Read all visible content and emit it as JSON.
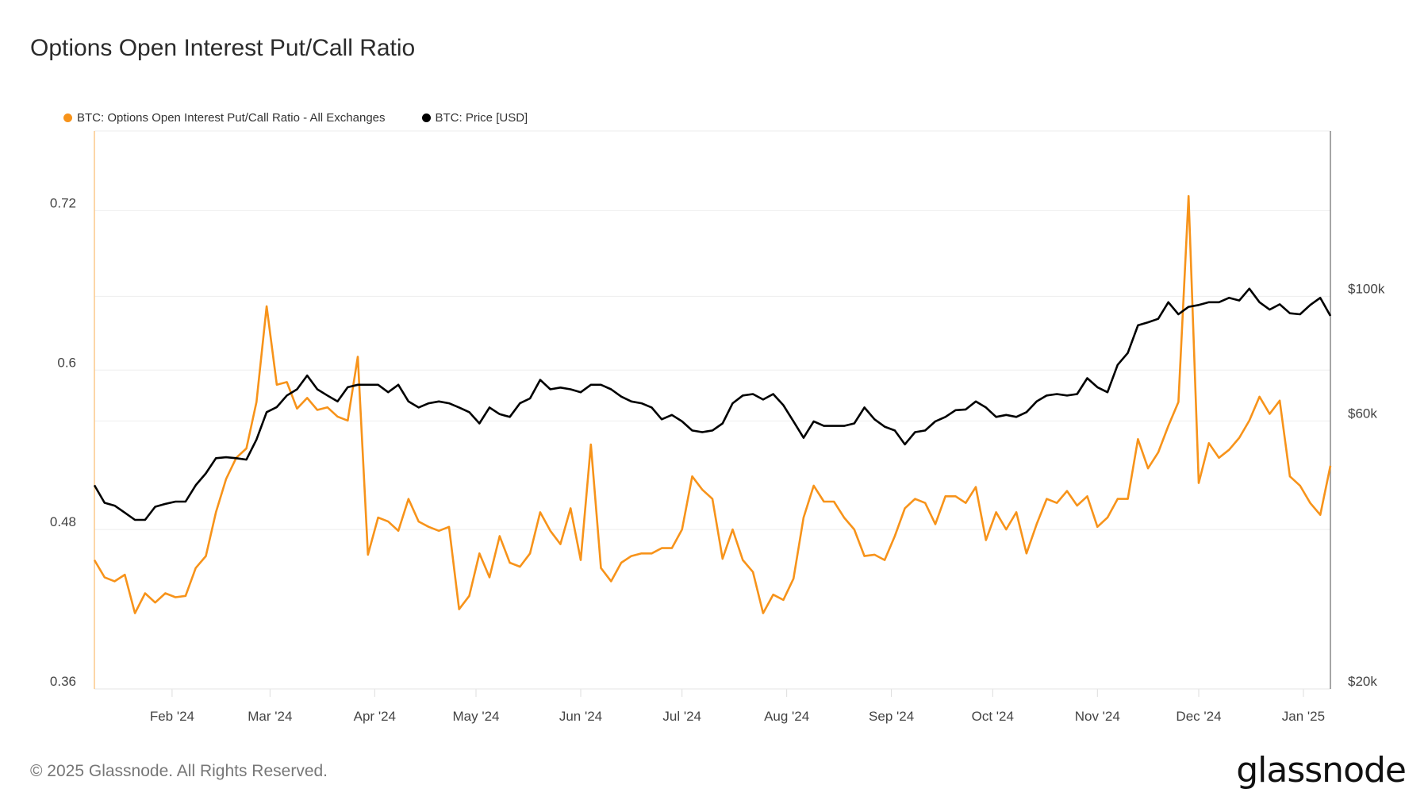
{
  "title": "Options Open Interest Put/Call Ratio",
  "legend": [
    {
      "label": "BTC: Options Open Interest Put/Call Ratio - All Exchanges",
      "color": "#f7931a"
    },
    {
      "label": "BTC: Price [USD]",
      "color": "#000000"
    }
  ],
  "footer": {
    "copyright": "© 2025 Glassnode. All Rights Reserved.",
    "logo": "glassnode"
  },
  "chart_data": {
    "type": "line",
    "title": "Options Open Interest Put/Call Ratio",
    "grid": true,
    "legend_position": "top-left",
    "x_range": [
      "2024-01-09",
      "2025-01-09"
    ],
    "x_ticks": [
      {
        "date": "2024-02-01",
        "label": "Feb '24"
      },
      {
        "date": "2024-03-01",
        "label": "Mar '24"
      },
      {
        "date": "2024-04-01",
        "label": "Apr '24"
      },
      {
        "date": "2024-05-01",
        "label": "May '24"
      },
      {
        "date": "2024-06-01",
        "label": "Jun '24"
      },
      {
        "date": "2024-07-01",
        "label": "Jul '24"
      },
      {
        "date": "2024-08-01",
        "label": "Aug '24"
      },
      {
        "date": "2024-09-01",
        "label": "Sep '24"
      },
      {
        "date": "2024-10-01",
        "label": "Oct '24"
      },
      {
        "date": "2024-11-01",
        "label": "Nov '24"
      },
      {
        "date": "2024-12-01",
        "label": "Dec '24"
      },
      {
        "date": "2025-01-01",
        "label": "Jan '25"
      }
    ],
    "y_left": {
      "scale": "linear",
      "range": [
        0.36,
        0.78
      ],
      "ticks": [
        {
          "value": 0.36,
          "label": "0.36"
        },
        {
          "value": 0.48,
          "label": "0.48"
        },
        {
          "value": 0.6,
          "label": "0.6"
        },
        {
          "value": 0.72,
          "label": "0.72"
        }
      ]
    },
    "y_right": {
      "scale": "log",
      "range": [
        20000,
        197000
      ],
      "ticks": [
        {
          "value": 20000,
          "label": "$20k"
        },
        {
          "value": 60000,
          "label": "$60k"
        },
        {
          "value": 100000,
          "label": "$100k"
        }
      ]
    },
    "x": [
      "2024-01-09",
      "2024-01-12",
      "2024-01-15",
      "2024-01-18",
      "2024-01-21",
      "2024-01-24",
      "2024-01-27",
      "2024-01-30",
      "2024-02-02",
      "2024-02-05",
      "2024-02-08",
      "2024-02-11",
      "2024-02-14",
      "2024-02-17",
      "2024-02-20",
      "2024-02-23",
      "2024-02-26",
      "2024-02-29",
      "2024-03-03",
      "2024-03-06",
      "2024-03-09",
      "2024-03-12",
      "2024-03-15",
      "2024-03-18",
      "2024-03-21",
      "2024-03-24",
      "2024-03-27",
      "2024-03-30",
      "2024-04-02",
      "2024-04-05",
      "2024-04-08",
      "2024-04-11",
      "2024-04-14",
      "2024-04-17",
      "2024-04-20",
      "2024-04-23",
      "2024-04-26",
      "2024-04-29",
      "2024-05-02",
      "2024-05-05",
      "2024-05-08",
      "2024-05-11",
      "2024-05-14",
      "2024-05-17",
      "2024-05-20",
      "2024-05-23",
      "2024-05-26",
      "2024-05-29",
      "2024-06-01",
      "2024-06-04",
      "2024-06-07",
      "2024-06-10",
      "2024-06-13",
      "2024-06-16",
      "2024-06-19",
      "2024-06-22",
      "2024-06-25",
      "2024-06-28",
      "2024-07-01",
      "2024-07-04",
      "2024-07-07",
      "2024-07-10",
      "2024-07-13",
      "2024-07-16",
      "2024-07-19",
      "2024-07-22",
      "2024-07-25",
      "2024-07-28",
      "2024-07-31",
      "2024-08-03",
      "2024-08-06",
      "2024-08-09",
      "2024-08-12",
      "2024-08-15",
      "2024-08-18",
      "2024-08-21",
      "2024-08-24",
      "2024-08-27",
      "2024-08-30",
      "2024-09-02",
      "2024-09-05",
      "2024-09-08",
      "2024-09-11",
      "2024-09-14",
      "2024-09-17",
      "2024-09-20",
      "2024-09-23",
      "2024-09-26",
      "2024-09-29",
      "2024-10-02",
      "2024-10-05",
      "2024-10-08",
      "2024-10-11",
      "2024-10-14",
      "2024-10-17",
      "2024-10-20",
      "2024-10-23",
      "2024-10-26",
      "2024-10-29",
      "2024-11-01",
      "2024-11-04",
      "2024-11-07",
      "2024-11-10",
      "2024-11-13",
      "2024-11-16",
      "2024-11-19",
      "2024-11-22",
      "2024-11-25",
      "2024-11-28",
      "2024-12-01",
      "2024-12-04",
      "2024-12-07",
      "2024-12-10",
      "2024-12-13",
      "2024-12-16",
      "2024-12-19",
      "2024-12-22",
      "2024-12-25",
      "2024-12-28",
      "2024-12-31",
      "2025-01-03",
      "2025-01-06",
      "2025-01-09"
    ],
    "series": [
      {
        "name": "BTC: Options Open Interest Put/Call Ratio - All Exchanges",
        "axis": "left",
        "color": "#f7931a",
        "values": [
          0.457,
          0.444,
          0.441,
          0.446,
          0.417,
          0.432,
          0.425,
          0.432,
          0.429,
          0.43,
          0.451,
          0.46,
          0.493,
          0.518,
          0.534,
          0.541,
          0.576,
          0.648,
          0.589,
          0.591,
          0.571,
          0.579,
          0.57,
          0.572,
          0.565,
          0.562,
          0.61,
          0.461,
          0.489,
          0.486,
          0.479,
          0.503,
          0.486,
          0.482,
          0.479,
          0.482,
          0.42,
          0.43,
          0.462,
          0.444,
          0.475,
          0.455,
          0.452,
          0.462,
          0.493,
          0.479,
          0.469,
          0.496,
          0.457,
          0.544,
          0.451,
          0.441,
          0.455,
          0.46,
          0.462,
          0.462,
          0.466,
          0.466,
          0.48,
          0.52,
          0.51,
          0.503,
          0.458,
          0.48,
          0.457,
          0.448,
          0.417,
          0.431,
          0.427,
          0.443,
          0.489,
          0.513,
          0.501,
          0.501,
          0.489,
          0.48,
          0.46,
          0.461,
          0.457,
          0.475,
          0.496,
          0.503,
          0.5,
          0.484,
          0.505,
          0.505,
          0.5,
          0.512,
          0.472,
          0.493,
          0.48,
          0.493,
          0.462,
          0.484,
          0.503,
          0.5,
          0.509,
          0.498,
          0.505,
          0.482,
          0.489,
          0.503,
          0.503,
          0.548,
          0.526,
          0.538,
          0.558,
          0.576,
          0.731,
          0.515,
          0.545,
          0.534,
          0.54,
          0.549,
          0.562,
          0.58,
          0.567,
          0.577,
          0.52,
          0.513,
          0.5,
          0.491,
          0.528
        ]
      },
      {
        "name": "BTC: Price [USD]",
        "axis": "right",
        "color": "#000000",
        "values": [
          46100,
          42900,
          42400,
          41200,
          40000,
          40000,
          42200,
          42700,
          43100,
          43100,
          46100,
          48400,
          51500,
          51700,
          51500,
          51200,
          55600,
          62200,
          63500,
          66600,
          68300,
          72300,
          68300,
          66600,
          65000,
          68900,
          69600,
          69600,
          69600,
          67500,
          69600,
          65000,
          63400,
          64500,
          65000,
          64500,
          63400,
          62200,
          59400,
          63400,
          61700,
          61000,
          64500,
          65800,
          71000,
          68300,
          68800,
          68300,
          67500,
          69600,
          69600,
          68300,
          66300,
          65000,
          64500,
          63400,
          60400,
          61500,
          59900,
          57700,
          57300,
          57700,
          59400,
          64500,
          66600,
          67000,
          65500,
          67000,
          64000,
          59900,
          56000,
          59900,
          58800,
          58800,
          58800,
          59400,
          63400,
          60400,
          58600,
          57700,
          54500,
          57300,
          57700,
          59900,
          61000,
          62700,
          62900,
          65000,
          63400,
          61000,
          61500,
          61000,
          62200,
          65000,
          66600,
          67000,
          66600,
          67000,
          71500,
          68900,
          67500,
          75500,
          79300,
          88800,
          89900,
          91200,
          97600,
          92900,
          95800,
          96500,
          97600,
          97600,
          99400,
          98300,
          103200,
          97600,
          94700,
          96800,
          93300,
          92900,
          96500,
          99400,
          92300
        ]
      }
    ]
  }
}
